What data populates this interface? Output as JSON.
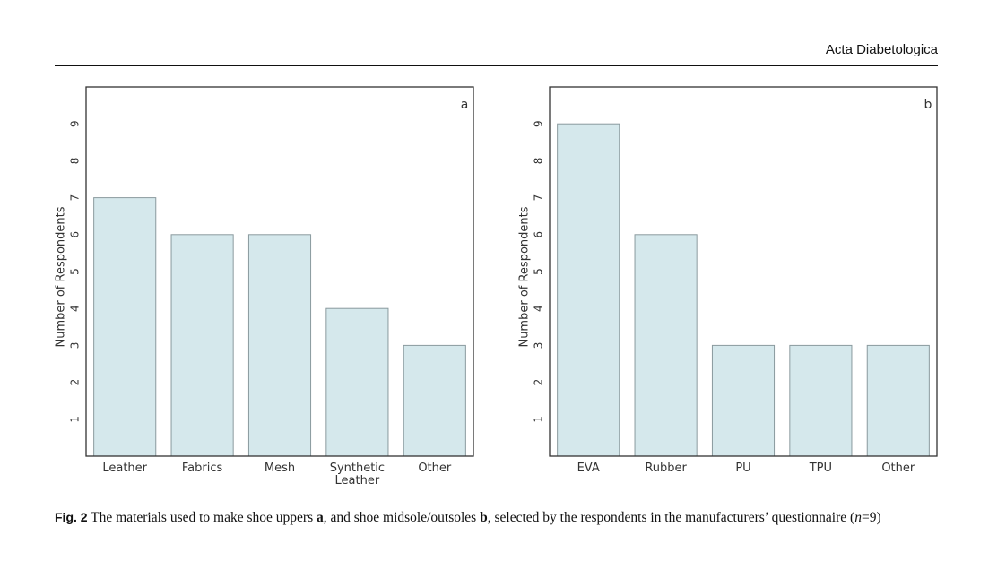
{
  "header": "Acta Diabetologica",
  "caption": {
    "label": "Fig. 2",
    "segments": [
      "The materials used to make shoe uppers ",
      "a",
      ", and shoe midsole/outsoles ",
      "b",
      ", selected by the respondents in the manufacturers’ questionnaire (",
      "n",
      "=9)"
    ]
  },
  "chart_data": [
    {
      "type": "bar",
      "panel": "a",
      "y_label": "Number of Respondents",
      "categories": [
        "Leather",
        "Fabrics",
        "Mesh",
        "Synthetic\nLeather",
        "Other"
      ],
      "values": [
        7,
        6,
        6,
        4,
        3
      ],
      "color": "#d5e8ec",
      "ylim": [
        0,
        10
      ],
      "yticks": [
        1,
        2,
        3,
        4,
        5,
        6,
        7,
        8,
        9
      ],
      "grid": false
    },
    {
      "type": "bar",
      "panel": "b",
      "y_label": "Number of Respondents",
      "categories": [
        "EVA",
        "Rubber",
        "PU",
        "TPU",
        "Other"
      ],
      "values": [
        9,
        6,
        3,
        3,
        3
      ],
      "color": "#d5e8ec",
      "ylim": [
        0,
        10
      ],
      "yticks": [
        1,
        2,
        3,
        4,
        5,
        6,
        7,
        8,
        9
      ],
      "grid": false
    }
  ]
}
